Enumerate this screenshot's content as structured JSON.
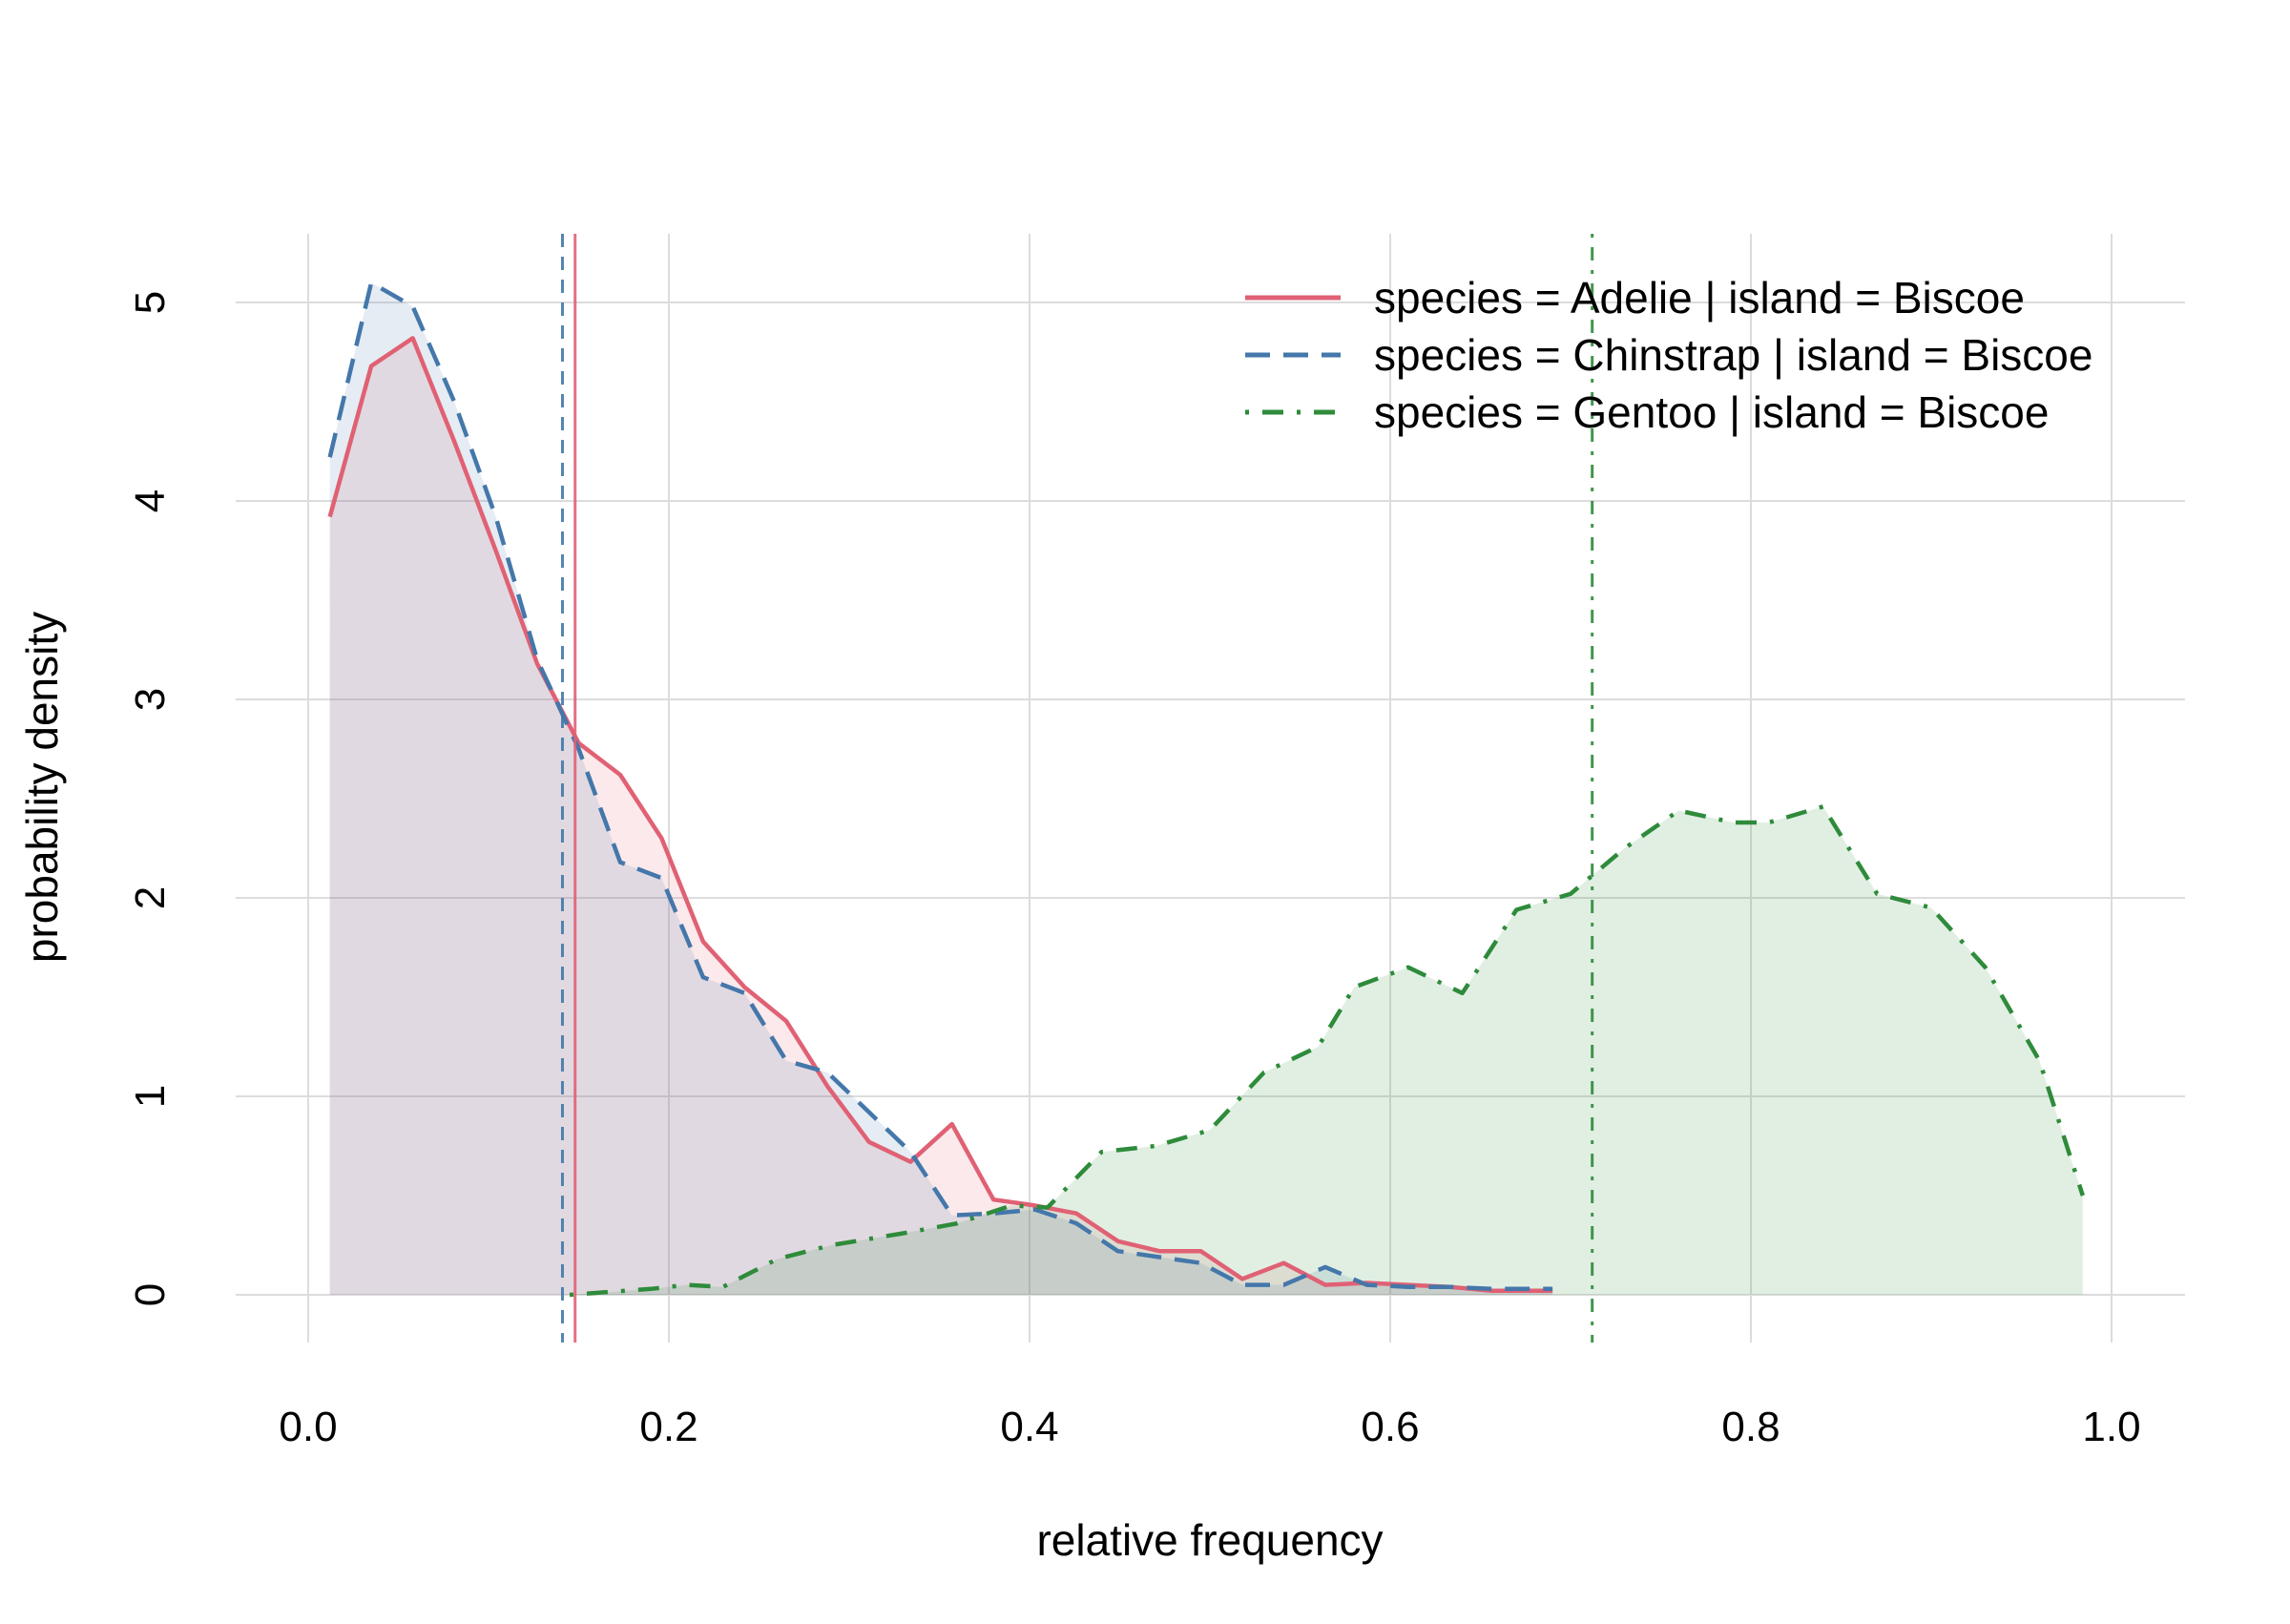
{
  "chart_data": {
    "type": "area",
    "title": "",
    "xlabel": "relative frequency",
    "ylabel": "probability density",
    "xlim": [
      -0.04,
      1.04
    ],
    "ylim": [
      -0.25,
      5.6
    ],
    "xticks": [
      0.0,
      0.2,
      0.4,
      0.6,
      0.8,
      1.0
    ],
    "xtick_labels": [
      "0.0",
      "0.2",
      "0.4",
      "0.6",
      "0.8",
      "1.0"
    ],
    "yticks": [
      0,
      1,
      2,
      3,
      4,
      5
    ],
    "ytick_labels": [
      "0",
      "1",
      "2",
      "3",
      "4",
      "5"
    ],
    "grid": true,
    "legend_position": "top-right",
    "series": [
      {
        "name": "species = Adelie | island = Biscoe",
        "color": "#E06174",
        "line_style": "solid",
        "mean_line": 0.148,
        "mean_line_style": "solid",
        "x": [
          0.012,
          0.035,
          0.058,
          0.081,
          0.104,
          0.127,
          0.15,
          0.173,
          0.196,
          0.219,
          0.242,
          0.265,
          0.288,
          0.311,
          0.334,
          0.357,
          0.38,
          0.403,
          0.426,
          0.449,
          0.472,
          0.495,
          0.518,
          0.541,
          0.564,
          0.587,
          0.61,
          0.633,
          0.656,
          0.69
        ],
        "values": [
          3.92,
          4.68,
          4.82,
          4.3,
          3.75,
          3.18,
          2.78,
          2.62,
          2.3,
          1.78,
          1.55,
          1.38,
          1.05,
          0.77,
          0.67,
          0.86,
          0.48,
          0.45,
          0.41,
          0.27,
          0.22,
          0.22,
          0.08,
          0.16,
          0.05,
          0.06,
          0.05,
          0.04,
          0.02,
          0.02
        ]
      },
      {
        "name": "species = Chinstrap | island = Biscoe",
        "color": "#4477AA",
        "line_style": "dashed",
        "mean_line": 0.141,
        "mean_line_style": "dashed",
        "x": [
          0.012,
          0.035,
          0.058,
          0.081,
          0.104,
          0.127,
          0.15,
          0.173,
          0.196,
          0.219,
          0.242,
          0.265,
          0.288,
          0.311,
          0.334,
          0.357,
          0.38,
          0.403,
          0.426,
          0.449,
          0.472,
          0.495,
          0.518,
          0.541,
          0.564,
          0.587,
          0.61,
          0.633,
          0.656,
          0.69
        ],
        "values": [
          4.22,
          5.1,
          4.98,
          4.5,
          3.92,
          3.2,
          2.75,
          2.18,
          2.1,
          1.6,
          1.52,
          1.18,
          1.12,
          0.92,
          0.72,
          0.4,
          0.41,
          0.43,
          0.36,
          0.22,
          0.19,
          0.16,
          0.05,
          0.05,
          0.14,
          0.05,
          0.04,
          0.04,
          0.03,
          0.03
        ]
      },
      {
        "name": "species = Gentoo | island = Biscoe",
        "color": "#2E8B3A",
        "line_style": "dotdash",
        "mean_line": 0.712,
        "mean_line_style": "dotdash",
        "x": [
          0.145,
          0.19,
          0.21,
          0.23,
          0.26,
          0.29,
          0.33,
          0.36,
          0.39,
          0.41,
          0.44,
          0.47,
          0.5,
          0.53,
          0.56,
          0.58,
          0.61,
          0.64,
          0.67,
          0.7,
          0.73,
          0.76,
          0.79,
          0.81,
          0.84,
          0.87,
          0.9,
          0.93,
          0.96,
          0.984
        ],
        "values": [
          0.0,
          0.03,
          0.05,
          0.04,
          0.18,
          0.25,
          0.31,
          0.36,
          0.45,
          0.44,
          0.72,
          0.75,
          0.83,
          1.12,
          1.25,
          1.55,
          1.65,
          1.52,
          1.94,
          2.02,
          2.25,
          2.44,
          2.38,
          2.38,
          2.46,
          2.02,
          1.95,
          1.65,
          1.18,
          0.5
        ]
      }
    ]
  }
}
